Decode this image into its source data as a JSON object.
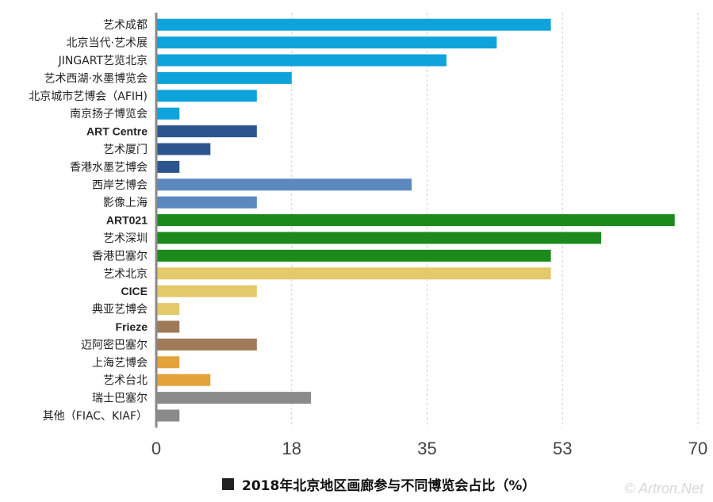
{
  "chart_data": {
    "type": "bar",
    "orientation": "horizontal",
    "title": "",
    "xlabel": "",
    "ylabel": "",
    "xlim": [
      0,
      70
    ],
    "xticks": [
      "0",
      "18",
      "35",
      "53",
      "70"
    ],
    "grid": "vertical-dashed",
    "legend": {
      "position": "bottom",
      "label": "2018年北京地区画廊参与不同博览会占比（%）",
      "color": "#222222"
    },
    "categories": [
      "艺术成都",
      "北京当代·艺术展",
      "JINGART艺览北京",
      "艺术西湖·水墨博览会",
      "北京城市艺博会（AFIH)",
      "南京扬子博览会",
      "ART Centre",
      "艺术厦门",
      "香港水墨艺博会",
      "西岸艺博会",
      "影像上海",
      "ART021",
      "艺术深圳",
      "香港巴塞尔",
      "艺术北京",
      "CICE",
      "典亚艺博会",
      "Frieze",
      "迈阿密巴塞尔",
      "上海艺博会",
      "艺术台北",
      "瑞士巴塞尔",
      "其他（FIAC、KIAF）"
    ],
    "values": [
      51,
      44,
      37.5,
      17.5,
      13,
      3,
      13,
      7,
      3,
      33,
      13,
      67,
      57.5,
      51,
      51,
      13,
      3,
      3,
      13,
      3,
      7,
      20,
      3
    ],
    "colors": [
      "#0fa3dc",
      "#0fa3dc",
      "#0fa3dc",
      "#0fa3dc",
      "#0fa3dc",
      "#0fa3dc",
      "#2c5590",
      "#2c5590",
      "#2c5590",
      "#5b88bf",
      "#5b88bf",
      "#1b8a1b",
      "#1b8a1b",
      "#1b8a1b",
      "#e4c96a",
      "#e4c96a",
      "#e4c96a",
      "#a07a58",
      "#a07a58",
      "#e2a33a",
      "#e2a33a",
      "#8a8a8a",
      "#8a8a8a"
    ]
  },
  "watermark": "© Artron.Net"
}
